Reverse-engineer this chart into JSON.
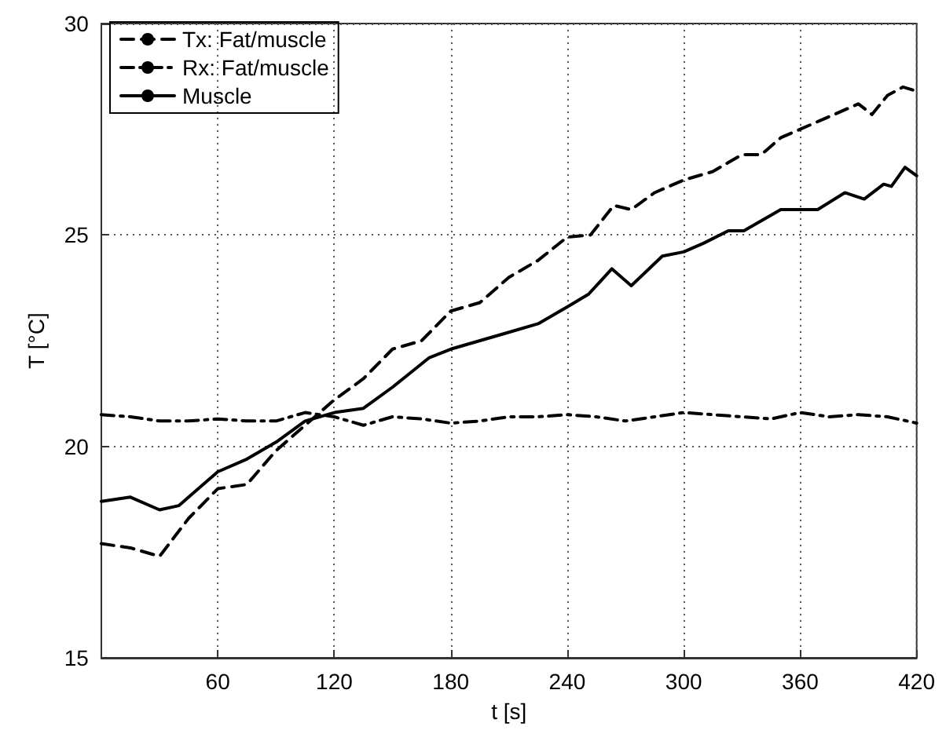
{
  "chart_data": {
    "type": "line",
    "xlabel": "t [s]",
    "ylabel": "T [°C]",
    "xlim": [
      0,
      420
    ],
    "xticks": [
      {
        "value": 0,
        "label": null
      },
      60,
      120,
      180,
      240,
      300,
      360,
      420
    ],
    "ylim": [
      15,
      30
    ],
    "yticks": [
      15,
      20,
      25,
      30
    ],
    "grid": true,
    "legend": "top left",
    "marker": "none",
    "series": [
      {
        "name": "Tx: Fat/muscle",
        "color": "#000000",
        "line_style": "dashed",
        "x": [
          0,
          15,
          30,
          45,
          60,
          75,
          90,
          105,
          120,
          135,
          150,
          165,
          180,
          195,
          210,
          225,
          240,
          252,
          264,
          273,
          285,
          300,
          315,
          330,
          340,
          350,
          360,
          370,
          380,
          390,
          397,
          405,
          413,
          420
        ],
        "values": [
          17.7,
          17.6,
          17.4,
          18.3,
          19.0,
          19.1,
          19.9,
          20.5,
          21.1,
          21.6,
          22.3,
          22.5,
          23.2,
          23.4,
          24.0,
          24.4,
          24.95,
          25.0,
          25.7,
          25.6,
          26.0,
          26.3,
          26.5,
          26.9,
          26.9,
          27.3,
          27.5,
          27.7,
          27.9,
          28.1,
          27.85,
          28.3,
          28.5,
          28.4
        ]
      },
      {
        "name": "Rx: Fat/muscle",
        "color": "#000000",
        "line_style": "dashdot",
        "x": [
          0,
          15,
          30,
          45,
          60,
          75,
          90,
          105,
          120,
          135,
          150,
          165,
          180,
          195,
          210,
          225,
          240,
          255,
          270,
          285,
          300,
          315,
          330,
          345,
          360,
          375,
          390,
          405,
          420
        ],
        "values": [
          20.75,
          20.7,
          20.6,
          20.6,
          20.65,
          20.6,
          20.6,
          20.8,
          20.7,
          20.5,
          20.7,
          20.65,
          20.55,
          20.6,
          20.7,
          20.7,
          20.75,
          20.7,
          20.6,
          20.7,
          20.8,
          20.75,
          20.7,
          20.65,
          20.8,
          20.7,
          20.75,
          20.7,
          20.55
        ]
      },
      {
        "name": "Muscle",
        "color": "#000000",
        "line_style": "solid",
        "x": [
          0,
          15,
          30,
          40,
          60,
          75,
          90,
          105,
          120,
          135,
          150,
          169,
          180,
          195,
          210,
          225,
          240,
          251,
          263,
          273,
          289,
          300,
          310,
          323,
          331,
          350,
          369,
          383,
          393,
          403,
          407,
          414,
          420
        ],
        "values": [
          18.7,
          18.8,
          18.5,
          18.6,
          19.4,
          19.7,
          20.1,
          20.6,
          20.8,
          20.9,
          21.4,
          22.1,
          22.3,
          22.5,
          22.7,
          22.9,
          23.3,
          23.6,
          24.2,
          23.8,
          24.5,
          24.6,
          24.8,
          25.1,
          25.1,
          25.6,
          25.6,
          26.0,
          25.85,
          26.2,
          26.15,
          26.6,
          26.4
        ]
      }
    ]
  }
}
